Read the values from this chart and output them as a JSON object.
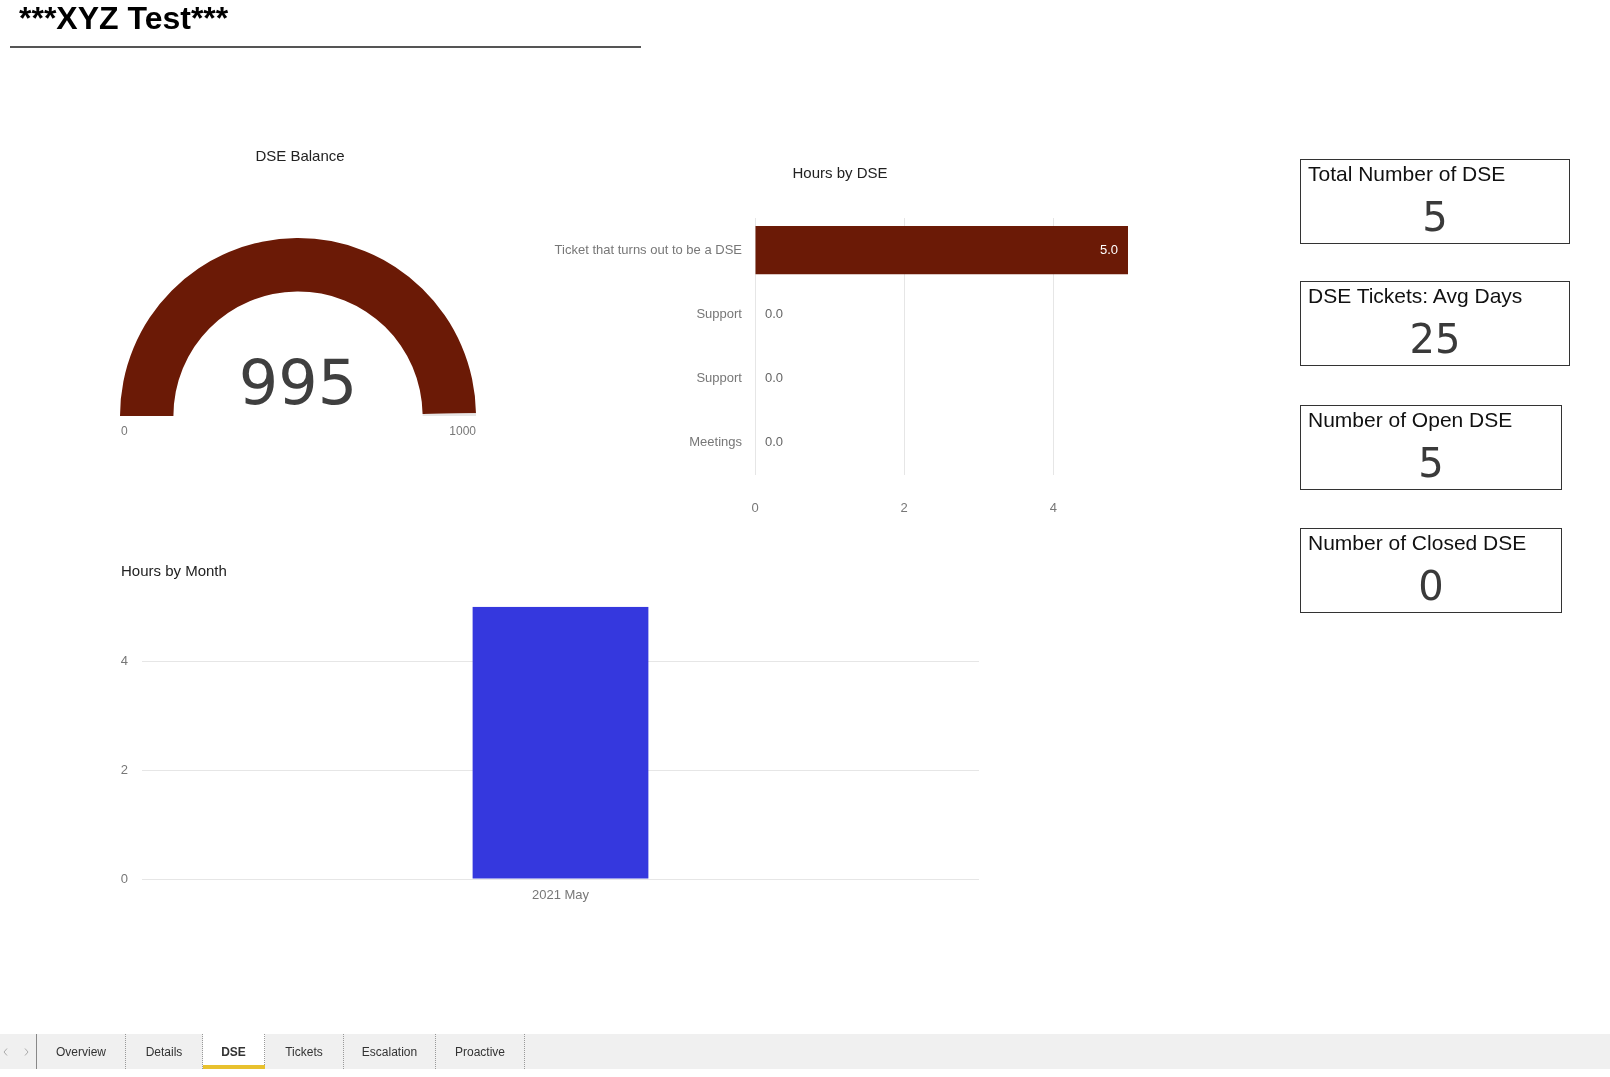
{
  "chart_data": [
    {
      "type": "other",
      "title": "***XYZ Test***"
    },
    {
      "type": "donut",
      "title": "DSE Balance",
      "categories": [
        null,
        null
      ],
      "values": [
        995,
        5
      ],
      "colors": [
        "#6b1a06",
        "#e6e6e6"
      ],
      "value_labels": [
        "995",
        null
      ],
      "annotations": [
        "0",
        "1000"
      ]
    },
    {
      "type": "bar",
      "orientation": "horizontal",
      "title": "Hours by DSE",
      "categories": [
        "Ticket that turns out to be a DSE",
        "Support",
        "Support",
        "Meetings"
      ],
      "values": [
        5,
        0,
        0,
        0
      ],
      "color": "#6b1a06",
      "xlim": [
        0,
        5
      ],
      "xticks": [
        0,
        2,
        4
      ],
      "grid": "x",
      "value_labels": [
        "5.0",
        "0.0",
        "0.0",
        "0.0"
      ]
    },
    {
      "type": "bar",
      "title": "Hours by Month",
      "categories": [
        "2021 May"
      ],
      "values": [
        5
      ],
      "color": "#3538de",
      "ylim": [
        0,
        5
      ],
      "yticks": [
        0,
        2,
        4
      ],
      "grid": "y"
    },
    {
      "type": "other",
      "categories": [
        "Total Number of DSE",
        "DSE Tickets: Avg Days",
        "Number of Open DSE",
        "Number of Closed DSE"
      ],
      "values": [
        5,
        25,
        5,
        0
      ],
      "data_labels": true
    },
    {
      "type": "other",
      "categories": [
        "Overview",
        "Details",
        "DSE",
        "Tickets",
        "Escalation",
        "Proactive"
      ]
    }
  ]
}
